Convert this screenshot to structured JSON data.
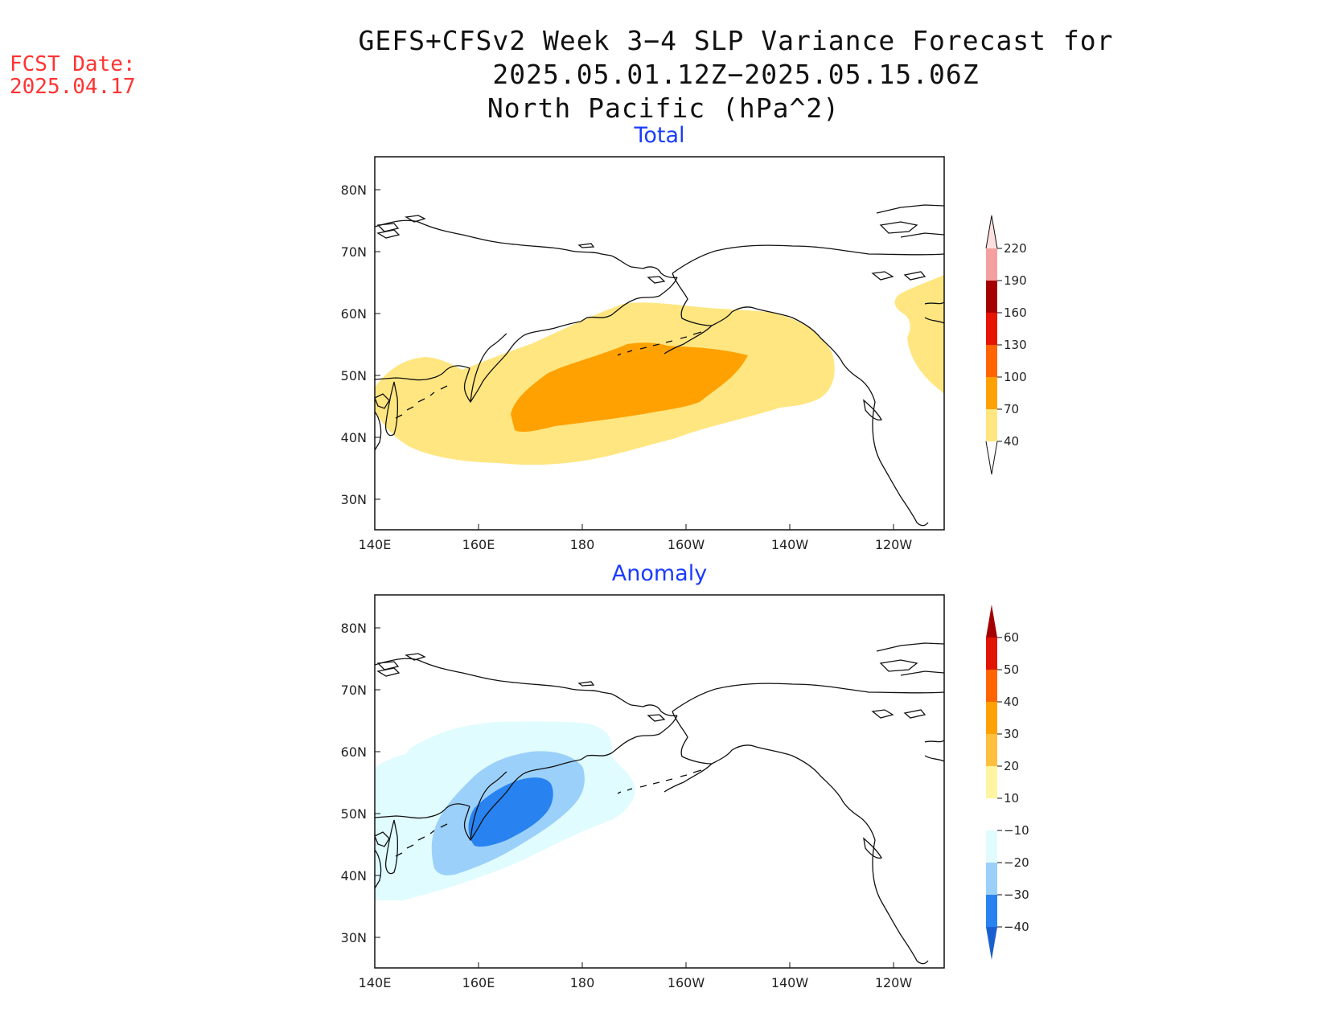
{
  "title_line1": "GEFS+CFSv2 Week 3−4 SLP Variance Forecast for 2025.05.01.12Z−2025.05.15.06Z",
  "title_line2": "North Pacific (hPa^2)",
  "fcst_label": "FCST Date:",
  "fcst_date": "2025.04.17",
  "panels": [
    {
      "title": "Total",
      "lat_ticks": [
        "80N",
        "70N",
        "60N",
        "50N",
        "40N",
        "30N"
      ],
      "lon_ticks": [
        "140E",
        "160E",
        "180",
        "160W",
        "140W",
        "120W"
      ],
      "colorbar": {
        "labels": [
          "40",
          "70",
          "100",
          "130",
          "160",
          "190",
          "220"
        ],
        "colors": [
          "#ffe680",
          "#ffa100",
          "#ff6400",
          "#e61400",
          "#a50000",
          "#f5a0a0",
          "#ffe0e0"
        ],
        "triangle_low": "#ffffff",
        "triangle_high": "#ffe0e0"
      }
    },
    {
      "title": "Anomaly",
      "lat_ticks": [
        "80N",
        "70N",
        "60N",
        "50N",
        "40N",
        "30N"
      ],
      "lon_ticks": [
        "140E",
        "160E",
        "180",
        "160W",
        "140W",
        "120W"
      ],
      "colorbar": {
        "labels": [
          "60",
          "50",
          "40",
          "30",
          "20",
          "10",
          "−10",
          "−20",
          "−30",
          "−40"
        ],
        "colors": [
          "#e11400",
          "#ff6400",
          "#ffa100",
          "#ffc040",
          "#fff5a0",
          "#ffffff",
          "#e0fcff",
          "#9bd0fa",
          "#2882f0",
          "#1a5fd0"
        ],
        "triangle_high": "#a50000",
        "triangle_low": "#1a5fd0"
      }
    }
  ],
  "colors": {
    "total_40_70": "#ffe680",
    "total_70_100": "#ffa100",
    "anom_neg10_20": "#e0fcff",
    "anom_neg20_30": "#9bd0fa",
    "anom_neg30_40": "#2882f0"
  }
}
